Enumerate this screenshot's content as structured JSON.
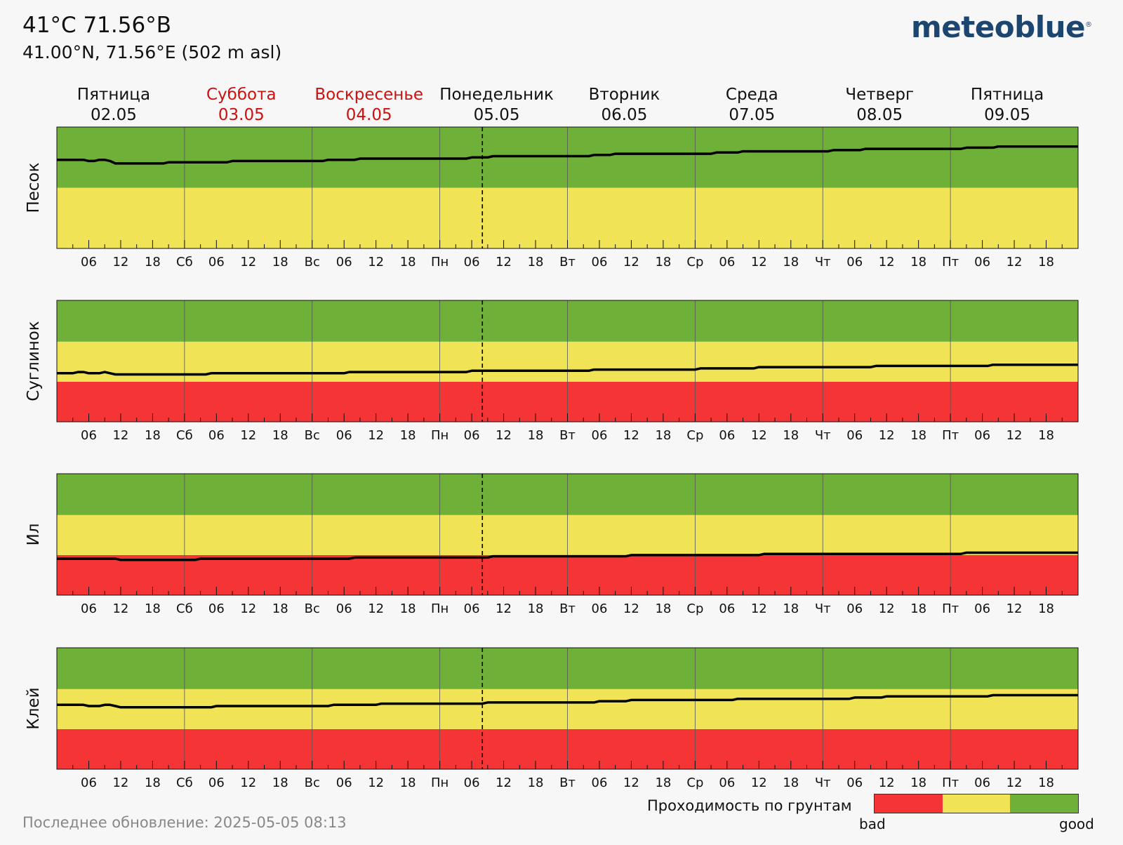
{
  "header": {
    "title": "41°C 71.56°B",
    "subtitle": "41.00°N, 71.56°E (502 m asl)",
    "logo": "meteoblue",
    "logo_mark": "®"
  },
  "footer": {
    "updated": "Последнее обновление: 2025-05-05 08:13"
  },
  "legend": {
    "title": "Проходимость по грунтам",
    "bad": "bad",
    "good": "good"
  },
  "colors": {
    "bad": "#f53535",
    "medium": "#f0e456",
    "good": "#6eb038",
    "line": "#000000",
    "now_line": "#000000"
  },
  "chart_data": {
    "type": "line",
    "days": [
      {
        "name": "Пятница",
        "date": "02.05",
        "weekend": false
      },
      {
        "name": "Суббота",
        "date": "03.05",
        "weekend": true
      },
      {
        "name": "Воскресенье",
        "date": "04.05",
        "weekend": true
      },
      {
        "name": "Понедельник",
        "date": "05.05",
        "weekend": false
      },
      {
        "name": "Вторник",
        "date": "06.05",
        "weekend": false
      },
      {
        "name": "Среда",
        "date": "07.05",
        "weekend": false
      },
      {
        "name": "Четверг",
        "date": "08.05",
        "weekend": false
      },
      {
        "name": "Пятница",
        "date": "09.05",
        "weekend": false
      }
    ],
    "tick_labels": [
      [
        "06",
        "12",
        "18"
      ],
      [
        "Сб",
        "06",
        "12",
        "18"
      ],
      [
        "Вс",
        "06",
        "12",
        "18"
      ],
      [
        "Пн",
        "06",
        "12",
        "18"
      ],
      [
        "Вт",
        "06",
        "12",
        "18"
      ],
      [
        "Ср",
        "06",
        "12",
        "18"
      ],
      [
        "Чт",
        "06",
        "12",
        "18"
      ],
      [
        "Пт",
        "06",
        "12",
        "18"
      ]
    ],
    "x_range_hours": [
      0,
      192
    ],
    "now_hour": 80,
    "y_range": [
      0,
      1
    ],
    "panels": [
      {
        "label": "Песок",
        "zones": [
          0.0,
          0.0,
          0.5,
          1.0
        ],
        "x": [
          0,
          5,
          6,
          7,
          8,
          9,
          10,
          11,
          12,
          20,
          21,
          32,
          33,
          50,
          51,
          56,
          57,
          77,
          78,
          81,
          82,
          100,
          101,
          104,
          105,
          123,
          124,
          128,
          129,
          145,
          146,
          151,
          152,
          170,
          171,
          176,
          177,
          192
        ],
        "values": [
          0.73,
          0.73,
          0.72,
          0.72,
          0.73,
          0.73,
          0.72,
          0.7,
          0.7,
          0.7,
          0.71,
          0.71,
          0.72,
          0.72,
          0.73,
          0.73,
          0.74,
          0.74,
          0.75,
          0.75,
          0.76,
          0.76,
          0.77,
          0.77,
          0.78,
          0.78,
          0.79,
          0.79,
          0.8,
          0.8,
          0.81,
          0.81,
          0.82,
          0.82,
          0.83,
          0.83,
          0.84,
          0.84
        ]
      },
      {
        "label": "Суглинок",
        "zones": [
          0.0,
          0.33,
          0.66,
          1.0
        ],
        "x": [
          0,
          3,
          4,
          5,
          6,
          8,
          9,
          10,
          11,
          12,
          28,
          29,
          54,
          55,
          77,
          78,
          100,
          101,
          120,
          121,
          131,
          132,
          153,
          154,
          175,
          176,
          192
        ],
        "values": [
          0.4,
          0.4,
          0.41,
          0.41,
          0.4,
          0.4,
          0.41,
          0.4,
          0.39,
          0.39,
          0.39,
          0.4,
          0.4,
          0.41,
          0.41,
          0.42,
          0.42,
          0.43,
          0.43,
          0.44,
          0.44,
          0.45,
          0.45,
          0.46,
          0.46,
          0.47,
          0.47
        ]
      },
      {
        "label": "Ил",
        "zones": [
          0.0,
          0.33,
          0.66,
          1.0
        ],
        "x": [
          0,
          11,
          12,
          26,
          27,
          55,
          56,
          81,
          82,
          107,
          108,
          132,
          133,
          170,
          171,
          192
        ],
        "values": [
          0.3,
          0.3,
          0.29,
          0.29,
          0.3,
          0.3,
          0.31,
          0.31,
          0.32,
          0.32,
          0.33,
          0.33,
          0.34,
          0.34,
          0.35,
          0.35
        ]
      },
      {
        "label": "Клей",
        "zones": [
          0.0,
          0.33,
          0.66,
          1.0
        ],
        "x": [
          0,
          5,
          6,
          8,
          9,
          10,
          11,
          12,
          29,
          30,
          51,
          52,
          60,
          61,
          80,
          81,
          101,
          102,
          107,
          108,
          127,
          128,
          149,
          150,
          155,
          156,
          175,
          176,
          192
        ],
        "values": [
          0.53,
          0.53,
          0.52,
          0.52,
          0.53,
          0.53,
          0.52,
          0.51,
          0.51,
          0.52,
          0.52,
          0.53,
          0.53,
          0.54,
          0.54,
          0.55,
          0.55,
          0.56,
          0.56,
          0.57,
          0.57,
          0.58,
          0.58,
          0.59,
          0.59,
          0.6,
          0.6,
          0.61,
          0.61
        ]
      }
    ]
  }
}
